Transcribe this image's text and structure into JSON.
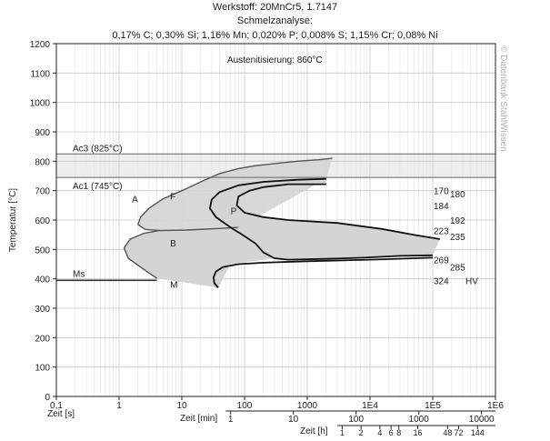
{
  "header": {
    "line1": "Werkstoff: 20MnCr5, 1.7147",
    "line2": "Schmelzanalyse:",
    "line3": "0,17% C; 0,30% Si; 1,16% Mn; 0,020% P; 0,008% S; 1,15% Cr; 0,08% Ni"
  },
  "watermark": "© Datenbank StahlWissen",
  "chart_data": {
    "type": "line",
    "title": "",
    "annotation": "Austenitisierung: 860°C",
    "ylabel": "Temperatur [°C]",
    "xlabel": "Zeit [s]",
    "x_scale": "log",
    "xlim": [
      0.1,
      1000000
    ],
    "ylim": [
      0,
      1200
    ],
    "grid": true,
    "y_ticks": [
      0,
      100,
      200,
      300,
      400,
      500,
      600,
      700,
      800,
      900,
      1000,
      1100,
      1200
    ],
    "x_ticks": [
      {
        "value": 0.1,
        "label": "0,1"
      },
      {
        "value": 1,
        "label": "1"
      },
      {
        "value": 10,
        "label": "10"
      },
      {
        "value": 100,
        "label": "100"
      },
      {
        "value": 1000,
        "label": "1000"
      },
      {
        "value": 10000,
        "label": "1E4"
      },
      {
        "value": 100000,
        "label": "1E5"
      },
      {
        "value": 1000000,
        "label": "1E6"
      }
    ],
    "secondary_axes": [
      {
        "label": "Zeit [min]",
        "ticks": [
          {
            "seconds": 60,
            "label": "1"
          },
          {
            "seconds": 600,
            "label": "10"
          },
          {
            "seconds": 6000,
            "label": "100"
          },
          {
            "seconds": 60000,
            "label": "1000"
          },
          {
            "seconds": 600000,
            "label": "10000"
          }
        ]
      },
      {
        "label": "Zeit [h]",
        "ticks": [
          {
            "seconds": 3600,
            "label": "1"
          },
          {
            "seconds": 7200,
            "label": "2"
          },
          {
            "seconds": 14400,
            "label": "4"
          },
          {
            "seconds": 21600,
            "label": "6"
          },
          {
            "seconds": 28800,
            "label": "8"
          },
          {
            "seconds": 57600,
            "label": "16"
          },
          {
            "seconds": 172800,
            "label": "48"
          },
          {
            "seconds": 259200,
            "label": "72"
          },
          {
            "seconds": 518400,
            "label": "144"
          }
        ]
      }
    ],
    "reference_lines": [
      {
        "label": "Ac3 (825°C)",
        "y": 825,
        "band_low": 745
      },
      {
        "label": "Ac1 (745°C)",
        "y": 745
      }
    ],
    "ms_line": {
      "label": "Ms",
      "y": 395,
      "x_end": 4
    },
    "region_labels": [
      {
        "label": "A",
        "x": 1.6,
        "y": 660
      },
      {
        "label": "F",
        "x": 6.5,
        "y": 670
      },
      {
        "label": "P",
        "x": 60,
        "y": 620
      },
      {
        "label": "B",
        "x": 6.5,
        "y": 510
      },
      {
        "label": "M",
        "x": 6.5,
        "y": 370
      }
    ],
    "ferrite_start_curve": [
      [
        2500,
        810
      ],
      [
        1500,
        805
      ],
      [
        700,
        800
      ],
      [
        300,
        792
      ],
      [
        150,
        785
      ],
      [
        80,
        775
      ],
      [
        40,
        758
      ],
      [
        20,
        730
      ],
      [
        10,
        700
      ],
      [
        5,
        672
      ],
      [
        3,
        640
      ],
      [
        2.2,
        610
      ],
      [
        2,
        585
      ],
      [
        2.6,
        568
      ],
      [
        4.5,
        564
      ],
      [
        12,
        566
      ],
      [
        45,
        572
      ],
      [
        80,
        575
      ]
    ],
    "bainite_start_curve": [
      [
        4.5,
        565
      ],
      [
        2.5,
        555
      ],
      [
        1.5,
        535
      ],
      [
        1.2,
        505
      ],
      [
        1.4,
        470
      ],
      [
        2.2,
        440
      ],
      [
        3,
        420
      ],
      [
        4,
        402
      ]
    ],
    "pearlite_start_curve": [
      [
        2000,
        740
      ],
      [
        700,
        737
      ],
      [
        200,
        730
      ],
      [
        80,
        718
      ],
      [
        40,
        695
      ],
      [
        30,
        670
      ],
      [
        28,
        640
      ],
      [
        35,
        610
      ],
      [
        60,
        575
      ],
      [
        100,
        545
      ],
      [
        150,
        520
      ],
      [
        200,
        490
      ],
      [
        300,
        470
      ],
      [
        500,
        465
      ],
      [
        2000,
        468
      ],
      [
        8000,
        472
      ],
      [
        30000,
        478
      ],
      [
        100000,
        480
      ]
    ],
    "pearlite_end_curve": [
      [
        2000,
        722
      ],
      [
        500,
        722
      ],
      [
        200,
        712
      ],
      [
        120,
        700
      ],
      [
        80,
        680
      ],
      [
        75,
        650
      ],
      [
        100,
        625
      ],
      [
        200,
        610
      ],
      [
        500,
        600
      ],
      [
        3000,
        590
      ],
      [
        15000,
        570
      ],
      [
        50000,
        550
      ],
      [
        130000,
        535
      ]
    ],
    "martensite_curve": [
      [
        38,
        370
      ],
      [
        33,
        385
      ],
      [
        32,
        405
      ],
      [
        35,
        425
      ],
      [
        45,
        440
      ],
      [
        80,
        450
      ],
      [
        200,
        455
      ],
      [
        1000,
        460
      ],
      [
        10000,
        465
      ],
      [
        100000,
        472
      ]
    ],
    "hardness_labels": [
      {
        "label": "170",
        "y": 700,
        "col": 0
      },
      {
        "label": "180",
        "y": 690,
        "col": 1
      },
      {
        "label": "184",
        "y": 650,
        "col": 0
      },
      {
        "label": "192",
        "y": 600,
        "col": 1
      },
      {
        "label": "223",
        "y": 565,
        "col": 0
      },
      {
        "label": "235",
        "y": 545,
        "col": 1
      },
      {
        "label": "269",
        "y": 465,
        "col": 0
      },
      {
        "label": "285",
        "y": 440,
        "col": 1
      },
      {
        "label": "324",
        "y": 395,
        "col": 0
      }
    ],
    "hardness_unit": "HV",
    "hardness_unit_y": 395,
    "colors": {
      "curve": "#111111",
      "fill": "#d4d4d4",
      "grid": "#c8c8c8",
      "band": "#eeeeee",
      "ms": "#333333"
    }
  }
}
